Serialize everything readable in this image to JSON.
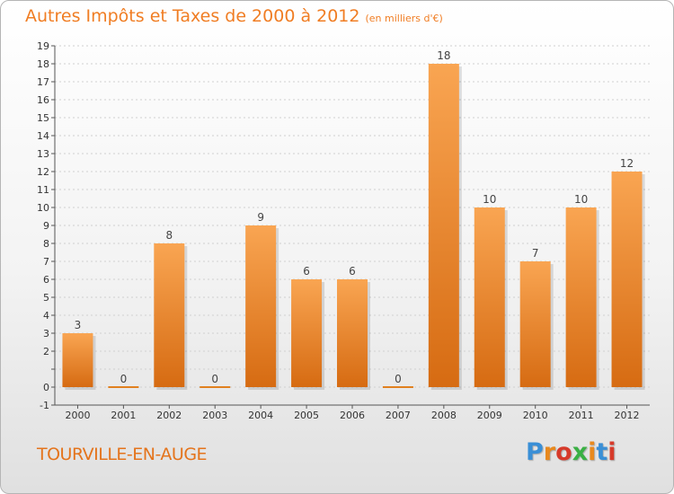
{
  "title": "Autres Impôts et Taxes de 2000 à 2012",
  "subtitle": "(en milliers d'€)",
  "commune": "TOURVILLE-EN-AUGE",
  "logo": {
    "letters": [
      "P",
      "r",
      "o",
      "x",
      "i",
      "t",
      "i"
    ],
    "colors": [
      "#3a8fd6",
      "#e8891e",
      "#d63a2a",
      "#3ab044",
      "#e8891e",
      "#3a8fd6",
      "#d63a2a"
    ]
  },
  "colors": {
    "title": "#f07d23",
    "bar": "#f08a2c",
    "axis": "#555555",
    "grid": "#d0d0d0"
  },
  "chart_data": {
    "type": "bar",
    "categories": [
      "2000",
      "2001",
      "2002",
      "2003",
      "2004",
      "2005",
      "2006",
      "2007",
      "2008",
      "2009",
      "2010",
      "2011",
      "2012"
    ],
    "values": [
      3,
      0,
      8,
      0,
      9,
      6,
      6,
      0,
      18,
      10,
      7,
      10,
      12
    ],
    "data_labels": [
      "3",
      "0",
      "8",
      "0",
      "9",
      "6",
      "6",
      "0",
      "18",
      "10",
      "7",
      "10",
      "12"
    ],
    "ylim": [
      -1,
      19
    ],
    "yticks": [
      "-1",
      "0",
      "",
      "2",
      "3",
      "4",
      "5",
      "6",
      "7",
      "8",
      "9",
      "10",
      "11",
      "12",
      "13",
      "14",
      "15",
      "16",
      "17",
      "18",
      "19"
    ],
    "grid": true
  }
}
